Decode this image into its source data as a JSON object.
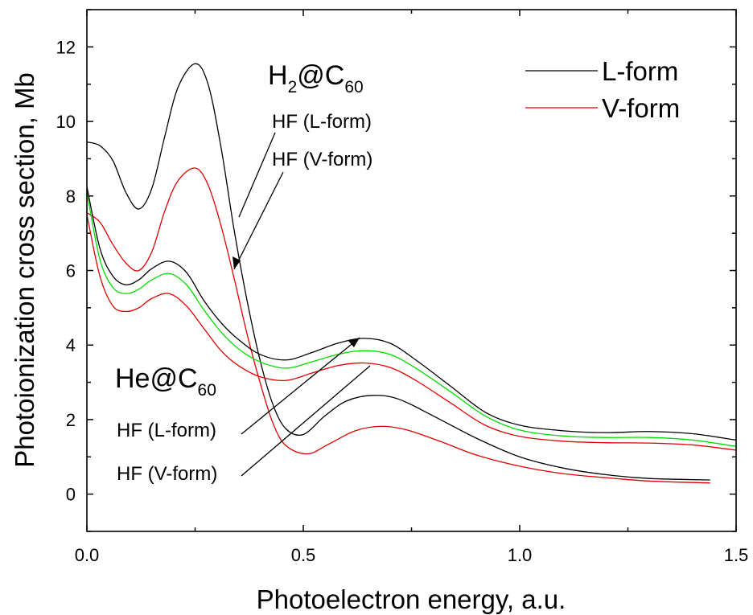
{
  "chart_data": {
    "type": "line",
    "xlabel": "Photoelectron energy, a.u.",
    "ylabel": "Photoionization cross section, Mb",
    "xlim": [
      0.0,
      1.5
    ],
    "ylim": [
      -1,
      13
    ],
    "xticks": [
      0.0,
      0.5,
      1.0,
      1.5
    ],
    "xtick_labels": [
      "0.0",
      "0.5",
      "1.0",
      "1.5"
    ],
    "yticks": [
      0,
      2,
      4,
      6,
      8,
      10,
      12
    ],
    "ytick_labels": [
      "0",
      "2",
      "4",
      "6",
      "8",
      "10",
      "12"
    ],
    "grid": false,
    "legend": {
      "position": "top-right",
      "entries": [
        {
          "label": "L-form",
          "color": "#000000"
        },
        {
          "label": "V-form",
          "color": "#e00000"
        }
      ]
    },
    "annotations": {
      "h2_base": "H",
      "h2_sub2": "2",
      "h2_at_c": "@C",
      "h2_sub60": "60",
      "h2_hf_l": "HF (L-form)",
      "h2_hf_v": "HF (V-form)",
      "he_base": "He@C",
      "he_sub60": "60",
      "he_hf_l": "HF (L-form)",
      "he_hf_v": "HF (V-form)"
    },
    "series": [
      {
        "color": "#000000",
        "x": [
          0.0,
          0.03,
          0.06,
          0.09,
          0.12,
          0.15,
          0.18,
          0.21,
          0.25,
          0.28,
          0.31,
          0.34,
          0.37,
          0.4,
          0.43,
          0.46,
          0.5,
          0.55,
          0.6,
          0.66,
          0.72,
          0.8,
          0.9,
          1.0,
          1.1,
          1.2,
          1.3,
          1.44
        ],
        "y": [
          9.45,
          9.35,
          8.95,
          8.1,
          7.65,
          8.2,
          9.6,
          10.9,
          11.55,
          11.0,
          9.3,
          7.1,
          5.2,
          3.6,
          2.4,
          1.75,
          1.6,
          2.1,
          2.5,
          2.65,
          2.55,
          2.1,
          1.5,
          1.0,
          0.7,
          0.52,
          0.42,
          0.38
        ]
      },
      {
        "color": "#e00000",
        "x": [
          0.0,
          0.03,
          0.06,
          0.09,
          0.12,
          0.15,
          0.18,
          0.21,
          0.25,
          0.28,
          0.31,
          0.34,
          0.37,
          0.4,
          0.43,
          0.46,
          0.51,
          0.56,
          0.62,
          0.68,
          0.74,
          0.82,
          0.9,
          1.0,
          1.1,
          1.2,
          1.3,
          1.44
        ],
        "y": [
          7.55,
          7.3,
          6.7,
          6.2,
          6.0,
          6.5,
          7.6,
          8.4,
          8.75,
          8.3,
          7.2,
          5.8,
          4.3,
          3.0,
          1.9,
          1.3,
          1.08,
          1.35,
          1.7,
          1.82,
          1.72,
          1.4,
          1.05,
          0.75,
          0.55,
          0.44,
          0.35,
          0.3
        ]
      },
      {
        "color": "#000000",
        "x": [
          0.0,
          0.03,
          0.06,
          0.09,
          0.12,
          0.15,
          0.19,
          0.23,
          0.27,
          0.31,
          0.35,
          0.4,
          0.46,
          0.52,
          0.58,
          0.64,
          0.7,
          0.76,
          0.84,
          0.92,
          1.0,
          1.1,
          1.2,
          1.3,
          1.4,
          1.5
        ],
        "y": [
          8.25,
          6.6,
          5.85,
          5.62,
          5.75,
          6.05,
          6.25,
          5.95,
          5.2,
          4.6,
          4.15,
          3.75,
          3.6,
          3.8,
          4.05,
          4.18,
          4.05,
          3.6,
          2.9,
          2.2,
          1.85,
          1.7,
          1.65,
          1.68,
          1.62,
          1.45
        ]
      },
      {
        "color": "#00dd00",
        "x": [
          0.0,
          0.03,
          0.06,
          0.09,
          0.12,
          0.15,
          0.19,
          0.23,
          0.27,
          0.31,
          0.35,
          0.4,
          0.46,
          0.52,
          0.58,
          0.64,
          0.7,
          0.76,
          0.84,
          0.92,
          1.0,
          1.1,
          1.2,
          1.3,
          1.4,
          1.5
        ],
        "y": [
          8.1,
          6.3,
          5.55,
          5.38,
          5.5,
          5.75,
          5.92,
          5.62,
          4.95,
          4.35,
          3.9,
          3.55,
          3.38,
          3.55,
          3.75,
          3.85,
          3.75,
          3.38,
          2.75,
          2.1,
          1.72,
          1.56,
          1.52,
          1.52,
          1.45,
          1.28
        ]
      },
      {
        "color": "#e00000",
        "x": [
          0.0,
          0.03,
          0.06,
          0.09,
          0.12,
          0.15,
          0.19,
          0.23,
          0.27,
          0.31,
          0.35,
          0.4,
          0.46,
          0.52,
          0.58,
          0.64,
          0.7,
          0.76,
          0.84,
          0.92,
          1.0,
          1.1,
          1.2,
          1.3,
          1.4,
          1.5
        ],
        "y": [
          7.5,
          5.85,
          5.05,
          4.9,
          5.0,
          5.25,
          5.38,
          5.05,
          4.45,
          3.85,
          3.45,
          3.15,
          3.05,
          3.25,
          3.45,
          3.52,
          3.4,
          3.05,
          2.45,
          1.85,
          1.55,
          1.42,
          1.38,
          1.37,
          1.32,
          1.18
        ]
      }
    ]
  }
}
